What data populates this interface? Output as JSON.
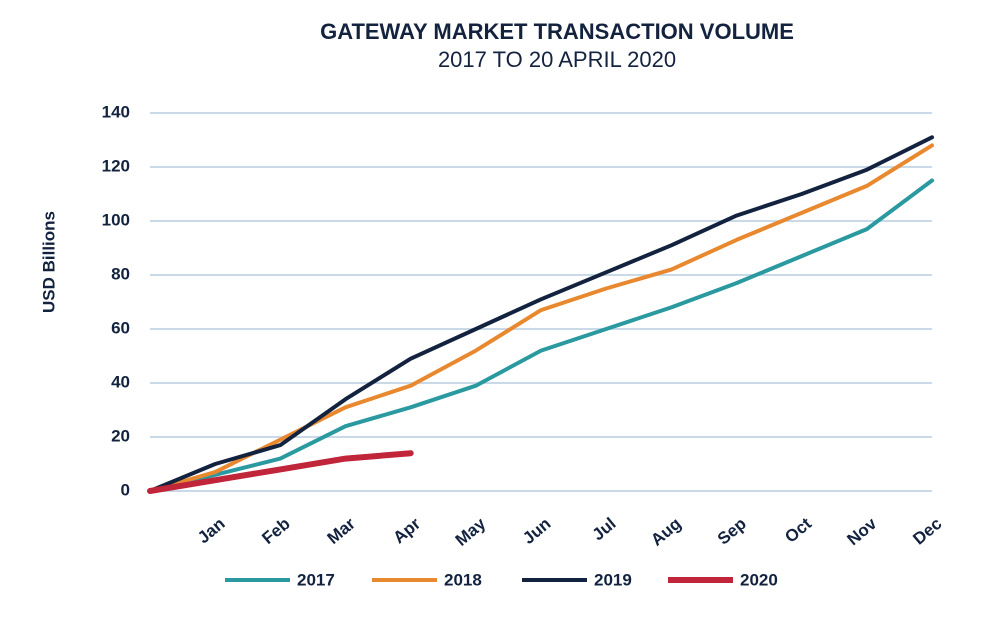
{
  "chart_data": {
    "type": "line",
    "title": "GATEWAY MARKET TRANSACTION VOLUME",
    "subtitle": "2017 TO 20 APRIL 2020",
    "y_label": "USD Billions",
    "categories": [
      null,
      "Jan",
      "Feb",
      "Mar",
      "Apr",
      "May",
      "Jun",
      "Jul",
      "Aug",
      "Sep",
      "Oct",
      "Nov",
      "Dec"
    ],
    "series": [
      {
        "name": "2017",
        "color": "#2a9aa0",
        "values": [
          0,
          6,
          12,
          24,
          31,
          39,
          52,
          60,
          68,
          77,
          87,
          97,
          115
        ]
      },
      {
        "name": "2018",
        "color": "#e8892f",
        "values": [
          0,
          7,
          19,
          31,
          39,
          52,
          67,
          75,
          82,
          93,
          103,
          113,
          128
        ]
      },
      {
        "name": "2019",
        "color": "#13233f",
        "values": [
          0,
          10,
          17,
          34,
          49,
          60,
          71,
          81,
          91,
          102,
          110,
          119,
          131
        ]
      },
      {
        "name": "2020",
        "color": "#c0253a",
        "values": [
          0,
          4,
          8,
          12,
          14,
          null,
          null,
          null,
          null,
          null,
          null,
          null,
          null
        ]
      }
    ],
    "ylim": [
      0,
      140
    ],
    "yticks": [
      0,
      20,
      40,
      60,
      80,
      100,
      120,
      140
    ],
    "grid": true,
    "legend": "bottom"
  }
}
